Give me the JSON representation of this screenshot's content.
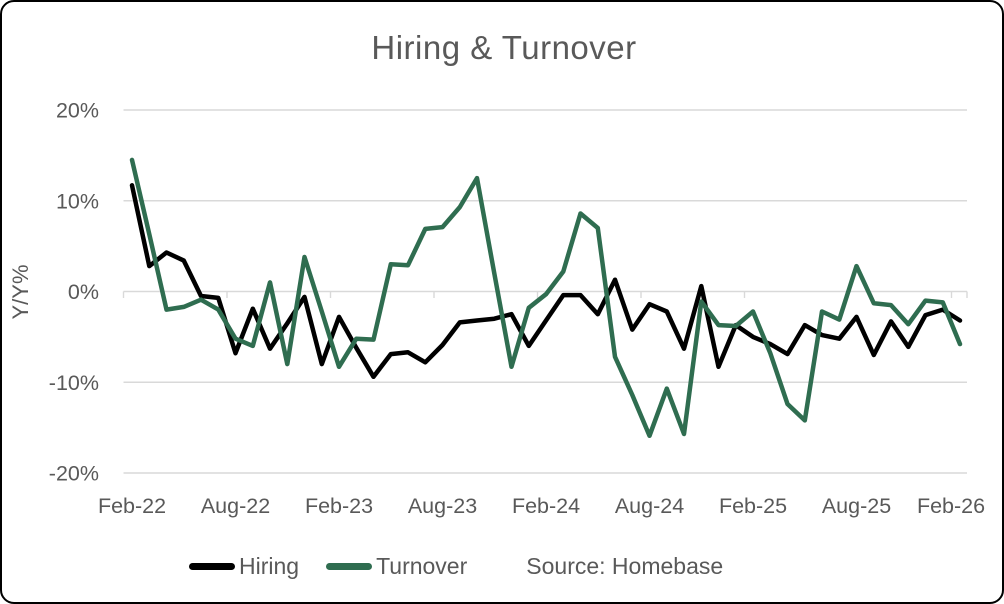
{
  "chart_data": {
    "type": "line",
    "title": "Hiring & Turnover",
    "ylabel": "Y/Y%",
    "source": "Source: Homebase",
    "grid": "horizontal",
    "legend_position": "bottom",
    "ylim": [
      -20,
      20
    ],
    "y_ticks": [
      20,
      10,
      0,
      -10,
      -20
    ],
    "y_tick_labels": [
      "20%",
      "10%",
      "0%",
      "-10%",
      "-20%"
    ],
    "x_tick_labels": [
      "Feb-22",
      "Aug-22",
      "Feb-23",
      "Aug-23",
      "Feb-24",
      "Aug-24",
      "Feb-25",
      "Aug-25",
      "Feb-26"
    ],
    "colors": {
      "hiring": "#000000",
      "turnover": "#2f6d50",
      "text": "#595959",
      "grid": "#d9d9d9",
      "border": "#000000",
      "background": "#ffffff"
    },
    "categories": [
      "Feb-22",
      "Mar-22",
      "Apr-22",
      "May-22",
      "Jun-22",
      "Jul-22",
      "Aug-22",
      "Sep-22",
      "Oct-22",
      "Nov-22",
      "Dec-22",
      "Jan-23",
      "Feb-23",
      "Mar-23",
      "Apr-23",
      "May-23",
      "Jun-23",
      "Jul-23",
      "Aug-23",
      "Sep-23",
      "Oct-23",
      "Nov-23",
      "Dec-23",
      "Jan-24",
      "Feb-24",
      "Mar-24",
      "Apr-24",
      "May-24",
      "Jun-24",
      "Jul-24",
      "Aug-24",
      "Sep-24",
      "Oct-24",
      "Nov-24",
      "Dec-24",
      "Jan-25",
      "Feb-25",
      "Mar-25",
      "Apr-25",
      "May-25",
      "Jun-25",
      "Jul-25",
      "Aug-25",
      "Sep-25",
      "Oct-25",
      "Nov-25",
      "Dec-25",
      "Jan-26",
      "Feb-26"
    ],
    "series": [
      {
        "name": "Hiring",
        "color": "#000000",
        "values": [
          11.7,
          2.8,
          4.3,
          3.4,
          -0.5,
          -0.7,
          -6.8,
          -1.9,
          -6.3,
          -3.5,
          -0.6,
          -8.0,
          -2.8,
          -6.2,
          -9.4,
          -6.9,
          -6.7,
          -7.8,
          -5.9,
          -3.4,
          -3.2,
          -3.0,
          -2.5,
          -6.0,
          -3.2,
          -0.4,
          -0.4,
          -2.5,
          1.3,
          -4.2,
          -1.4,
          -2.2,
          -6.3,
          0.6,
          -8.3,
          -3.7,
          -5.0,
          -5.8,
          -6.9,
          -3.7,
          -4.8,
          -5.2,
          -2.8,
          -7.0,
          -3.3,
          -6.1,
          -2.6,
          -2.0,
          -3.2
        ]
      },
      {
        "name": "Turnover",
        "color": "#2f6d50",
        "values": [
          14.5,
          6.3,
          -2.0,
          -1.7,
          -0.9,
          -2.0,
          -5.2,
          -6.0,
          1.0,
          -8.0,
          3.8,
          -2.2,
          -8.3,
          -5.2,
          -5.3,
          3.0,
          2.9,
          6.9,
          7.1,
          9.3,
          12.5,
          2.0,
          -8.3,
          -1.8,
          -0.3,
          2.2,
          8.6,
          7.0,
          -7.2,
          -11.4,
          -15.9,
          -10.7,
          -15.7,
          -1.1,
          -3.7,
          -3.8,
          -2.2,
          -6.8,
          -12.4,
          -14.2,
          -2.2,
          -3.1,
          2.8,
          -1.3,
          -1.5,
          -3.6,
          -1.0,
          -1.2,
          -5.8
        ]
      }
    ]
  }
}
